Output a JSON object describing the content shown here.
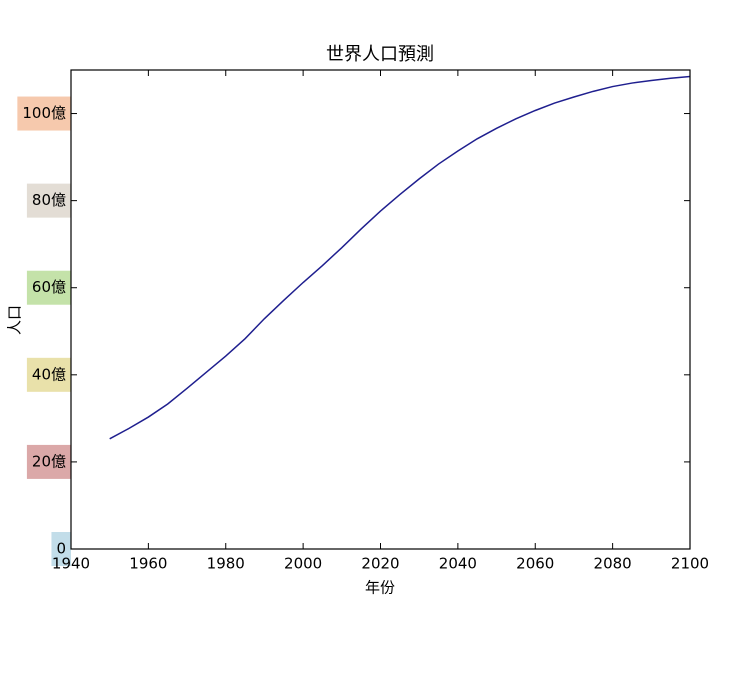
{
  "chart_data": {
    "type": "line",
    "title": "世界人口預測",
    "xlabel": "年份",
    "ylabel": "人口",
    "x": [
      1950,
      1955,
      1960,
      1965,
      1970,
      1975,
      1980,
      1985,
      1990,
      1995,
      2000,
      2005,
      2010,
      2015,
      2020,
      2025,
      2030,
      2035,
      2040,
      2045,
      2050,
      2055,
      2060,
      2065,
      2070,
      2075,
      2080,
      2085,
      2090,
      2095,
      2100
    ],
    "series": [
      {
        "name": "人口",
        "color": "#1f1f8f",
        "values": [
          2530000000,
          2770000000,
          3030000000,
          3330000000,
          3690000000,
          4060000000,
          4430000000,
          4830000000,
          5290000000,
          5710000000,
          6120000000,
          6510000000,
          6920000000,
          7350000000,
          7760000000,
          8140000000,
          8500000000,
          8840000000,
          9140000000,
          9420000000,
          9660000000,
          9880000000,
          10070000000,
          10240000000,
          10380000000,
          10510000000,
          10620000000,
          10700000000,
          10760000000,
          10810000000,
          10850000000
        ]
      }
    ],
    "xlim": [
      1940,
      2100
    ],
    "xticks": [
      1940,
      1960,
      1980,
      2000,
      2020,
      2040,
      2060,
      2080,
      2100
    ],
    "ylim": [
      0,
      11000000000
    ],
    "yticks": [
      0,
      {
        "value": 2000000000,
        "label": "20億"
      },
      {
        "value": 4000000000,
        "label": "40億"
      },
      {
        "value": 6000000000,
        "label": "60億"
      },
      {
        "value": 8000000000,
        "label": "80億"
      },
      {
        "value": 10000000000,
        "label": "100億"
      }
    ],
    "ytick_label_backgrounds": [
      "#c2dde9",
      "#dba8a8",
      "#e9e1aa",
      "#c4e2a9",
      "#e3ddd5",
      "#f6c9ad"
    ],
    "grid": false
  }
}
